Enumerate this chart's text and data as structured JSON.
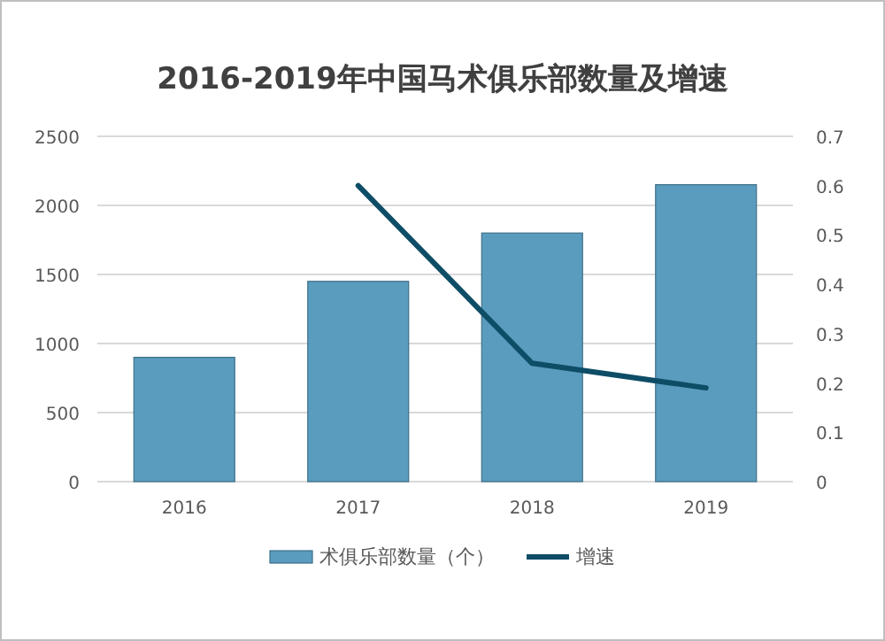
{
  "chart_data": {
    "type": "bar",
    "title": "2016-2019年中国马术俱乐部数量及增速",
    "categories": [
      "2016",
      "2017",
      "2018",
      "2019"
    ],
    "series": [
      {
        "name": "术俱乐部数量（个）",
        "color": "#5a9cbd",
        "values": [
          900,
          1450,
          1800,
          2150
        ]
      },
      {
        "name": "增速",
        "type": "line",
        "axis": "y2",
        "color": "#0e4d66",
        "values": [
          null,
          0.6,
          0.24,
          0.19
        ]
      }
    ],
    "ylim": [
      0,
      2500
    ],
    "yticks": [
      0,
      500,
      1000,
      1500,
      2000,
      2500
    ],
    "y2lim": [
      0,
      0.7
    ],
    "y2ticks": [
      0,
      0.1,
      0.2,
      0.3,
      0.4,
      0.5,
      0.6,
      0.7
    ],
    "grid": "y",
    "legend": "bottom"
  }
}
